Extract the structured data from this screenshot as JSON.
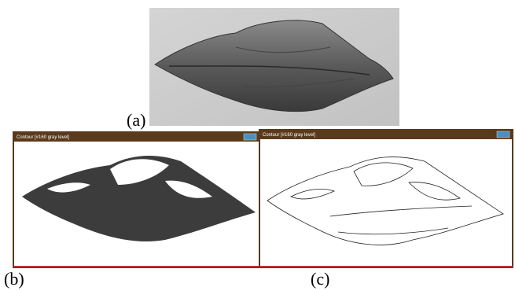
{
  "panels": [
    {
      "label": "(a)"
    },
    {
      "label": "(b)",
      "window_title": "Contour [#160 gray level]"
    },
    {
      "label": "(c)",
      "window_title": "Contour [#160 gray level]"
    }
  ]
}
